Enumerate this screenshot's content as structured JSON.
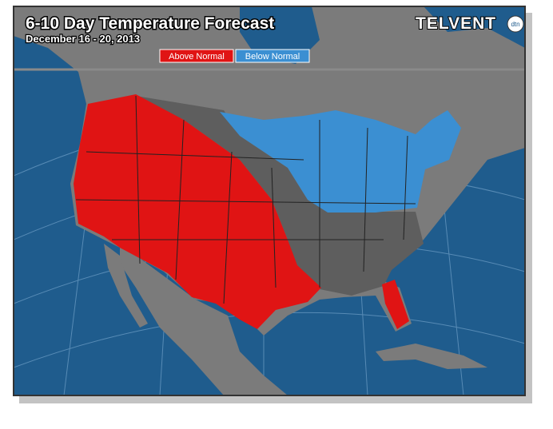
{
  "header": {
    "title": "6-10 Day Temperature Forecast",
    "subtitle": "December 16 - 20, 2013",
    "brand": "TELVENT",
    "brand_badge": "dtn"
  },
  "legend": {
    "items": [
      {
        "label": "Above Normal",
        "color": "#e01414"
      },
      {
        "label": "Below Normal",
        "color": "#3b8fd2"
      }
    ]
  }
}
